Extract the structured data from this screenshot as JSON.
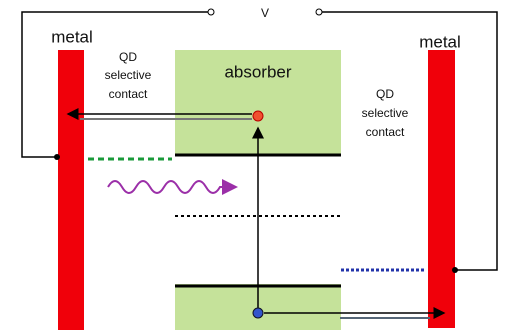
{
  "voltage_label": "V",
  "left_metal": "metal",
  "right_metal": "metal",
  "absorber": "absorber",
  "left_contact": [
    "QD",
    "selective",
    "contact"
  ],
  "right_contact": [
    "QD",
    "selective",
    "contact"
  ]
}
